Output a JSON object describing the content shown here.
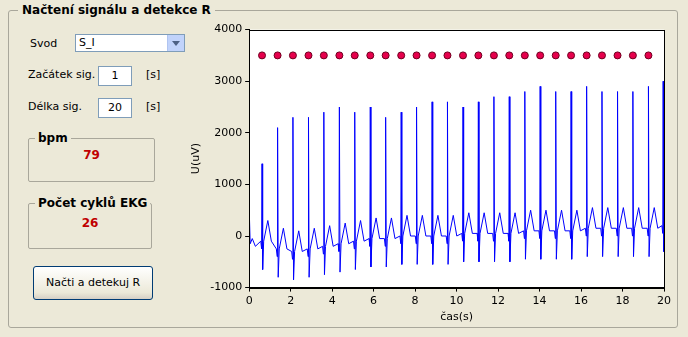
{
  "panel": {
    "title": "Načtení signálu a detekce R",
    "controls": {
      "lead": {
        "label": "Svod",
        "value": "S_I"
      },
      "start": {
        "label": "Začátek sig.",
        "value": 1,
        "unit": "[s]"
      },
      "length": {
        "label": "Délka sig.",
        "value": 20,
        "unit": "[s]"
      }
    },
    "results": {
      "bpm": {
        "label": "bpm",
        "value": 79
      },
      "cycles": {
        "label": "Počet cyklů EKG",
        "value": 26
      }
    },
    "button": "Načti a detekuj R"
  },
  "chart_data": {
    "type": "line",
    "x_label": "čas(s)",
    "y_label": "U(uV)",
    "xlim": [
      0,
      20
    ],
    "xticks": [
      0,
      2,
      4,
      6,
      8,
      10,
      12,
      14,
      16,
      18,
      20
    ],
    "ylim": [
      -1000,
      4000
    ],
    "yticks": [
      -1000,
      0,
      1000,
      2000,
      3000,
      4000
    ],
    "grid": false,
    "series": [
      {
        "type": "line",
        "color": "#0000ff",
        "line_style": "solid",
        "x": [
          0,
          0.05,
          0.15,
          0.3,
          0.56,
          0.6,
          0.62,
          0.65,
          0.7,
          0.9,
          1.07,
          1.31,
          1.35,
          1.37,
          1.4,
          1.45,
          1.65,
          1.82,
          2.05,
          2.09,
          2.11,
          2.14,
          2.19,
          2.39,
          2.56,
          2.8,
          2.84,
          2.86,
          2.89,
          2.94,
          3.14,
          3.31,
          3.54,
          3.58,
          3.6,
          3.63,
          3.68,
          3.88,
          4.05,
          4.29,
          4.33,
          4.35,
          4.38,
          4.43,
          4.63,
          4.8,
          5.03,
          5.07,
          5.09,
          5.12,
          5.17,
          5.37,
          5.54,
          5.78,
          5.82,
          5.84,
          5.87,
          5.92,
          6.12,
          6.29,
          6.52,
          6.56,
          6.58,
          6.61,
          6.66,
          6.86,
          7.03,
          7.27,
          7.31,
          7.33,
          7.36,
          7.41,
          7.61,
          7.78,
          8.01,
          8.05,
          8.07,
          8.1,
          8.15,
          8.35,
          8.52,
          8.76,
          8.8,
          8.82,
          8.85,
          8.9,
          9.1,
          9.27,
          9.5,
          9.54,
          9.56,
          9.59,
          9.64,
          9.84,
          10.01,
          10.25,
          10.29,
          10.31,
          10.34,
          10.39,
          10.59,
          10.76,
          10.99,
          11.03,
          11.05,
          11.08,
          11.13,
          11.33,
          11.5,
          11.74,
          11.78,
          11.8,
          11.83,
          11.88,
          12.08,
          12.25,
          12.48,
          12.52,
          12.54,
          12.57,
          12.62,
          12.82,
          12.99,
          13.23,
          13.27,
          13.29,
          13.32,
          13.37,
          13.57,
          13.74,
          13.97,
          14.01,
          14.03,
          14.06,
          14.11,
          14.31,
          14.48,
          14.72,
          14.76,
          14.78,
          14.81,
          14.86,
          15.06,
          15.23,
          15.46,
          15.5,
          15.52,
          15.55,
          15.6,
          15.8,
          15.97,
          16.21,
          16.25,
          16.27,
          16.3,
          16.35,
          16.55,
          16.72,
          16.95,
          16.99,
          17.01,
          17.04,
          17.09,
          17.29,
          17.46,
          17.7,
          17.74,
          17.76,
          17.79,
          17.84,
          18.04,
          18.21,
          18.44,
          18.48,
          18.5,
          18.53,
          18.58,
          18.78,
          18.95,
          19.19,
          19.23,
          19.25,
          19.28,
          19.33,
          19.53,
          19.7,
          19.9,
          19.94,
          19.96,
          19.98,
          20
        ],
        "values": [
          550,
          -150,
          -50,
          -200,
          -100,
          -250,
          1400,
          -650,
          -100,
          300,
          -100,
          -250,
          -400,
          2100,
          -800,
          -250,
          150,
          -250,
          -300,
          -450,
          2300,
          -850,
          -300,
          100,
          -300,
          -250,
          -400,
          2300,
          -800,
          -250,
          150,
          -250,
          -200,
          -350,
          2400,
          -750,
          -200,
          200,
          -200,
          -150,
          -300,
          2500,
          -700,
          -150,
          250,
          -150,
          -100,
          -250,
          2400,
          -650,
          -100,
          300,
          -100,
          -50,
          -200,
          2500,
          -600,
          -50,
          350,
          -50,
          -50,
          -200,
          2300,
          -600,
          -50,
          350,
          -50,
          0,
          -150,
          2400,
          -550,
          0,
          400,
          0,
          0,
          -150,
          2500,
          -550,
          0,
          400,
          0,
          0,
          -150,
          2600,
          -550,
          0,
          400,
          0,
          0,
          -150,
          2600,
          -550,
          0,
          400,
          0,
          50,
          -100,
          2500,
          -500,
          50,
          450,
          50,
          50,
          -100,
          2600,
          -500,
          50,
          450,
          50,
          50,
          -100,
          2700,
          -500,
          50,
          450,
          50,
          50,
          -100,
          2700,
          -500,
          50,
          450,
          50,
          100,
          -50,
          2800,
          -450,
          100,
          500,
          100,
          100,
          -50,
          2900,
          -450,
          100,
          500,
          100,
          100,
          -50,
          2800,
          -450,
          100,
          500,
          100,
          100,
          -50,
          2800,
          -450,
          100,
          500,
          100,
          150,
          0,
          2900,
          -400,
          150,
          550,
          150,
          150,
          0,
          2800,
          -400,
          150,
          550,
          150,
          150,
          0,
          2800,
          -400,
          150,
          550,
          150,
          150,
          0,
          2800,
          -400,
          150,
          550,
          150,
          150,
          0,
          2900,
          -400,
          150,
          550,
          150,
          200,
          50,
          3000,
          -300,
          100
        ]
      },
      {
        "type": "scatter",
        "color": "#e6004c",
        "marker": "circle",
        "x": [
          0.62,
          1.37,
          2.11,
          2.86,
          3.6,
          4.35,
          5.09,
          5.84,
          6.58,
          7.33,
          8.07,
          8.82,
          9.56,
          10.31,
          11.05,
          11.8,
          12.54,
          13.29,
          14.03,
          14.78,
          15.52,
          16.27,
          17.01,
          17.76,
          18.5,
          19.25
        ],
        "values": [
          3500,
          3500,
          3500,
          3500,
          3500,
          3500,
          3500,
          3500,
          3500,
          3500,
          3500,
          3500,
          3500,
          3500,
          3500,
          3500,
          3500,
          3500,
          3500,
          3500,
          3500,
          3500,
          3500,
          3500,
          3500,
          3500
        ]
      }
    ]
  }
}
